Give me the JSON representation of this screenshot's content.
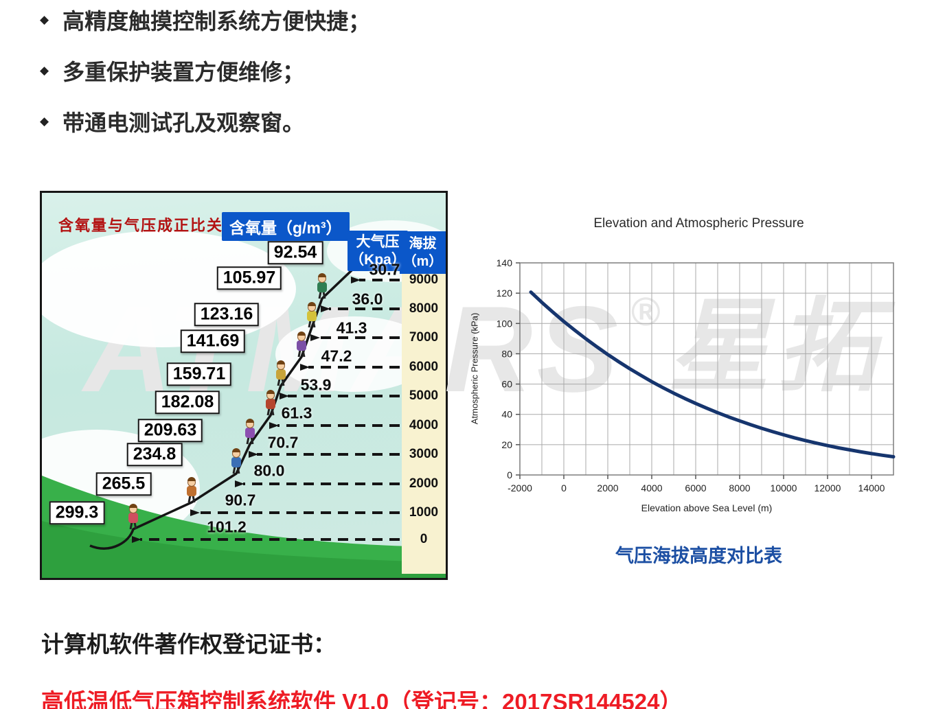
{
  "bullets": [
    {
      "text": "高精度触摸控制系统方便快捷；"
    },
    {
      "text": "多重保护装置方便维修；"
    },
    {
      "text": "带通电测试孔及观察窗。"
    }
  ],
  "watermark": {
    "brand": "ATMARS",
    "reg": "®",
    "cjk": "星拓"
  },
  "cartoon": {
    "title": "含氧量与气压成正比关系",
    "oxygen_header": "含氧量（g/m³）",
    "pressure_header_line1": "大气压",
    "pressure_header_line2": "（Kpa）",
    "elevation_header_line1": "海拔",
    "elevation_header_line2": "（m）",
    "rows": [
      {
        "elevation": "9000",
        "pressure": "30.7",
        "oxygen": "92.54"
      },
      {
        "elevation": "8000",
        "pressure": "36.0",
        "oxygen": "105.97"
      },
      {
        "elevation": "7000",
        "pressure": "41.3",
        "oxygen": "123.16"
      },
      {
        "elevation": "6000",
        "pressure": "47.2",
        "oxygen": "141.69"
      },
      {
        "elevation": "5000",
        "pressure": "53.9",
        "oxygen": "159.71"
      },
      {
        "elevation": "4000",
        "pressure": "61.3",
        "oxygen": "182.08"
      },
      {
        "elevation": "3000",
        "pressure": "70.7",
        "oxygen": "209.63"
      },
      {
        "elevation": "2000",
        "pressure": "80.0",
        "oxygen": "234.8"
      },
      {
        "elevation": "1000",
        "pressure": "90.7",
        "oxygen": "265.5"
      },
      {
        "elevation": "0",
        "pressure": "101.2",
        "oxygen": "299.3"
      }
    ]
  },
  "chart": {
    "title": "Elevation and Atmospheric Pressure",
    "xlabel": "Elevation above Sea Level (m)",
    "ylabel": "Atmospheric Pressure (kPa)",
    "caption": "气压海拔高度对比表"
  },
  "chart_data": {
    "type": "line",
    "title": "Elevation and Atmospheric Pressure",
    "xlabel": "Elevation above Sea Level (m)",
    "ylabel": "Atmospheric Pressure (kPa)",
    "xlim": [
      -2000,
      15000
    ],
    "ylim": [
      0,
      140
    ],
    "xticks": [
      -2000,
      0,
      2000,
      4000,
      6000,
      8000,
      10000,
      12000,
      14000
    ],
    "yticks": [
      0,
      20,
      40,
      60,
      80,
      100,
      120,
      140
    ],
    "grid": true,
    "minor_x_grid_step": 1000,
    "series": [
      {
        "name": "Atmospheric Pressure",
        "color": "#16356e",
        "points": [
          [
            -1500,
            120.7
          ],
          [
            -1000,
            113.9
          ],
          [
            -500,
            107.5
          ],
          [
            0,
            101.3
          ],
          [
            500,
            95.5
          ],
          [
            1000,
            89.9
          ],
          [
            1500,
            84.6
          ],
          [
            2000,
            79.5
          ],
          [
            2500,
            74.7
          ],
          [
            3000,
            70.1
          ],
          [
            3500,
            65.8
          ],
          [
            4000,
            61.6
          ],
          [
            4500,
            57.7
          ],
          [
            5000,
            54.0
          ],
          [
            5500,
            50.5
          ],
          [
            6000,
            47.2
          ],
          [
            6500,
            44.1
          ],
          [
            7000,
            41.1
          ],
          [
            7500,
            38.3
          ],
          [
            8000,
            35.7
          ],
          [
            8500,
            33.2
          ],
          [
            9000,
            30.8
          ],
          [
            9500,
            28.6
          ],
          [
            10000,
            26.5
          ],
          [
            10500,
            24.5
          ],
          [
            11000,
            22.7
          ],
          [
            11500,
            21.0
          ],
          [
            12000,
            19.4
          ],
          [
            12500,
            17.9
          ],
          [
            13000,
            16.6
          ],
          [
            13500,
            15.3
          ],
          [
            14000,
            14.1
          ],
          [
            14500,
            13.0
          ],
          [
            15000,
            12.0
          ]
        ]
      }
    ]
  },
  "colors": {
    "accent_blue": "#0b57c9",
    "cartoon_title_red": "#b31212",
    "caption_blue": "#1c4fa3",
    "footer_red": "#ee1c25",
    "curve_navy": "#16356e",
    "hill_green": "#38b04a",
    "strip_cream": "#f8f2d0",
    "sky_teal": "#cdeae3"
  },
  "footer": {
    "heading": "计算机软件著作权登记证书：",
    "line": "高低温低气压箱控制系统软件 V1.0（登记号：2017SR144524）"
  }
}
